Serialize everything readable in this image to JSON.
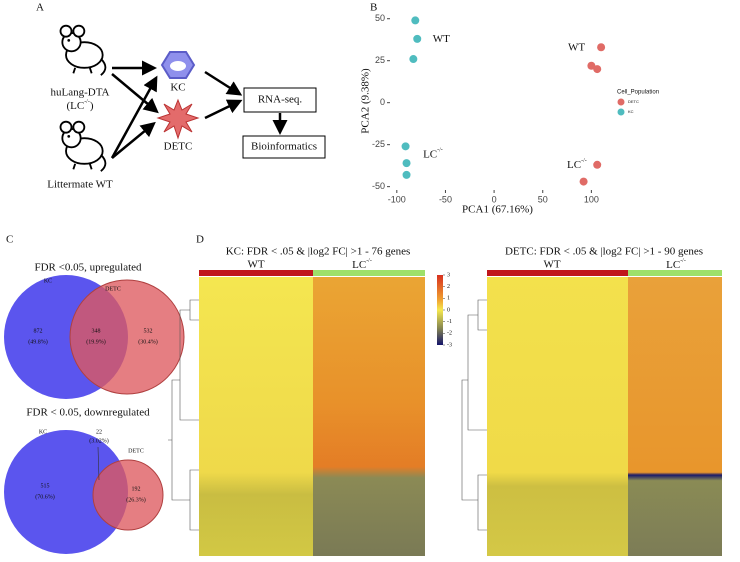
{
  "panels": {
    "a": "A",
    "b": "B",
    "c": "C",
    "d": "D"
  },
  "workflow": {
    "mouse_top": "huLang-DTA",
    "genotype_open": "(LC",
    "genotype_sup": "-/-",
    "genotype_close": ")",
    "mouse_bottom": "Littermate WT",
    "kc": "KC",
    "detc": "DETC",
    "rna_seq": "RNA-seq.",
    "bioinformatics": "Bioinformatics"
  },
  "chart_data": {
    "type": "scatter",
    "xlabel": "PCA1 (67.16%)",
    "ylabel": "PCA2 (9.38%)",
    "xlim": [
      -107,
      114
    ],
    "ylim": [
      -52,
      54
    ],
    "xticks": [
      -100,
      -50,
      0,
      50,
      100
    ],
    "yticks": [
      -50,
      -25,
      0,
      25,
      50
    ],
    "legend_title": "Cell_Population",
    "legend": "right",
    "series": [
      {
        "name": "DETC",
        "color": "#e06b66",
        "x": [
          110,
          100,
          106,
          106,
          92
        ],
        "values": [
          33,
          22,
          20,
          -37,
          -47
        ]
      },
      {
        "name": "KC",
        "color": "#4fbcbf",
        "x": [
          -81,
          -79,
          -83,
          -91,
          -90,
          -90
        ],
        "values": [
          49,
          38,
          26,
          -26,
          -36,
          -43
        ]
      }
    ],
    "annotations": [
      {
        "text": "WT",
        "x": -63,
        "y": 38
      },
      {
        "text": "WT",
        "x": 76,
        "y": 33
      },
      {
        "text": "LC",
        "sup": "-/-",
        "x": -73,
        "y": -31
      },
      {
        "text": "LC",
        "sup": "-/-",
        "x": 75,
        "y": -37
      }
    ]
  },
  "venn_up": {
    "title": "FDR <0.05, upregulated",
    "left_name": "KC",
    "right_name": "DETC",
    "left_count": "872",
    "left_pct": "(49.8%)",
    "both_count": "348",
    "both_pct": "(19.9%)",
    "right_count": "532",
    "right_pct": "(30.4%)"
  },
  "venn_down": {
    "title": "FDR < 0.05, downregulated",
    "left_name": "KC",
    "right_name": "DETC",
    "left_count": "515",
    "left_pct": "(70.6%)",
    "both_count": "22",
    "both_pct": "(3.02%)",
    "right_count": "192",
    "right_pct": "(26.3%)"
  },
  "heatmap_kc": {
    "title": "KC: FDR < .05 & |log2 FC| >1 - 76 genes",
    "group_wt": "WT",
    "group_lc": "LC",
    "group_lc_sup": "-/-",
    "colorbar_ticks": [
      3,
      2,
      1,
      0,
      -1,
      -2,
      -3
    ]
  },
  "heatmap_detc": {
    "title": "DETC: FDR < .05 & |log2 FC| >1 - 90 genes",
    "group_wt": "WT",
    "group_lc": "LC",
    "group_lc_sup": "-/-"
  }
}
